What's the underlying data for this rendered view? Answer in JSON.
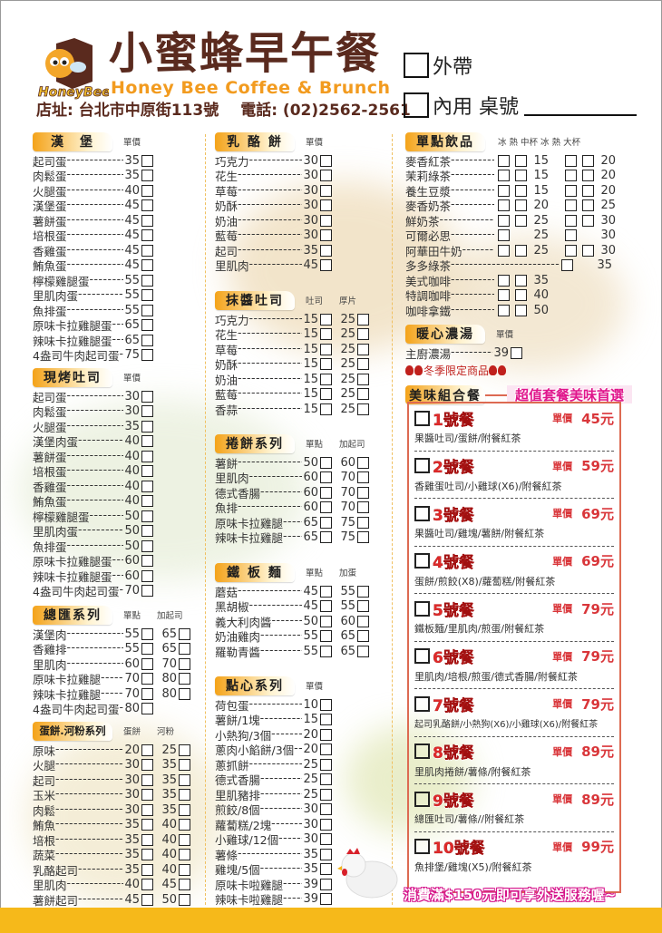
{
  "header": {
    "title": "小蜜蜂早午餐",
    "logo_text": "HoneyBee",
    "subtitle": "Honey Bee Coffee & Brunch",
    "address": "店址: 台北市中原街113號",
    "phone": "電話: (02)2562-2561",
    "takeout": "外帶",
    "dine_in": "內用 桌號"
  },
  "colors": {
    "brown": "#5a2a1e",
    "orange": "#f29b1f",
    "red": "#e02a2a",
    "magenta": "#e0168c",
    "footer": "#f6b91a"
  },
  "sections": {
    "burger": {
      "title": "漢　堡",
      "cols": [
        "單價"
      ],
      "items": [
        {
          "name": "起司蛋",
          "prices": [
            "35"
          ]
        },
        {
          "name": "肉鬆蛋",
          "prices": [
            "35"
          ]
        },
        {
          "name": "火腿蛋",
          "prices": [
            "40"
          ]
        },
        {
          "name": "漢堡蛋",
          "prices": [
            "45"
          ]
        },
        {
          "name": "薯餅蛋",
          "prices": [
            "45"
          ]
        },
        {
          "name": "培根蛋",
          "prices": [
            "45"
          ]
        },
        {
          "name": "香雞蛋",
          "prices": [
            "45"
          ]
        },
        {
          "name": "鮪魚蛋",
          "prices": [
            "45"
          ]
        },
        {
          "name": "檸檬雞腿蛋",
          "prices": [
            "55"
          ]
        },
        {
          "name": "里肌肉蛋",
          "prices": [
            "55"
          ]
        },
        {
          "name": "魚排蛋",
          "prices": [
            "55"
          ]
        },
        {
          "name": "原味卡拉雞腿蛋",
          "prices": [
            "65"
          ]
        },
        {
          "name": "辣味卡拉雞腿蛋",
          "prices": [
            "65"
          ]
        },
        {
          "name": "4盎司牛肉起司蛋",
          "prices": [
            "75"
          ]
        }
      ]
    },
    "toast": {
      "title": "現烤吐司",
      "cols": [
        "單價"
      ],
      "items": [
        {
          "name": "起司蛋",
          "prices": [
            "30"
          ]
        },
        {
          "name": "肉鬆蛋",
          "prices": [
            "30"
          ]
        },
        {
          "name": "火腿蛋",
          "prices": [
            "35"
          ]
        },
        {
          "name": "漢堡肉蛋",
          "prices": [
            "40"
          ]
        },
        {
          "name": "薯餅蛋",
          "prices": [
            "40"
          ]
        },
        {
          "name": "培根蛋",
          "prices": [
            "40"
          ]
        },
        {
          "name": "香雞蛋",
          "prices": [
            "40"
          ]
        },
        {
          "name": "鮪魚蛋",
          "prices": [
            "40"
          ]
        },
        {
          "name": "檸檬雞腿蛋",
          "prices": [
            "50"
          ]
        },
        {
          "name": "里肌肉蛋",
          "prices": [
            "50"
          ]
        },
        {
          "name": "魚排蛋",
          "prices": [
            "50"
          ]
        },
        {
          "name": "原味卡拉雞腿蛋",
          "prices": [
            "60"
          ]
        },
        {
          "name": "辣味卡拉雞腿蛋",
          "prices": [
            "60"
          ]
        },
        {
          "name": "4盎司牛肉起司蛋",
          "prices": [
            "70"
          ]
        }
      ]
    },
    "club": {
      "title": "總匯系列",
      "cols": [
        "單點",
        "加起司"
      ],
      "items": [
        {
          "name": "漢堡肉",
          "prices": [
            "55",
            "65"
          ]
        },
        {
          "name": "香雞排",
          "prices": [
            "55",
            "65"
          ]
        },
        {
          "name": "里肌肉",
          "prices": [
            "60",
            "70"
          ]
        },
        {
          "name": "原味卡拉雞腿",
          "prices": [
            "70",
            "80"
          ]
        },
        {
          "name": "辣味卡拉雞腿",
          "prices": [
            "70",
            "80"
          ]
        },
        {
          "name": "4盎司牛肉起司蛋",
          "prices": [
            "80"
          ]
        }
      ]
    },
    "eggroll": {
      "title": "蛋餅.河粉系列",
      "cols": [
        "蛋餅",
        "河粉"
      ],
      "items": [
        {
          "name": "原味",
          "prices": [
            "20",
            "25"
          ]
        },
        {
          "name": "火腿",
          "prices": [
            "30",
            "35"
          ]
        },
        {
          "name": "起司",
          "prices": [
            "30",
            "35"
          ]
        },
        {
          "name": "玉米",
          "prices": [
            "30",
            "35"
          ]
        },
        {
          "name": "肉鬆",
          "prices": [
            "30",
            "35"
          ]
        },
        {
          "name": "鮪魚",
          "prices": [
            "35",
            "40"
          ]
        },
        {
          "name": "培根",
          "prices": [
            "35",
            "40"
          ]
        },
        {
          "name": "蔬菜",
          "prices": [
            "35",
            "40"
          ]
        },
        {
          "name": "乳酪起司",
          "prices": [
            "35",
            "40"
          ]
        },
        {
          "name": "里肌肉",
          "prices": [
            "40",
            "45"
          ]
        },
        {
          "name": "薯餅起司",
          "prices": [
            "45",
            "50"
          ]
        }
      ]
    },
    "cheesecake": {
      "title": "乳 酪 餅",
      "cols": [
        "單價"
      ],
      "items": [
        {
          "name": "巧克力",
          "prices": [
            "30"
          ]
        },
        {
          "name": "花生",
          "prices": [
            "30"
          ]
        },
        {
          "name": "草莓",
          "prices": [
            "30"
          ]
        },
        {
          "name": "奶酥",
          "prices": [
            "30"
          ]
        },
        {
          "name": "奶油",
          "prices": [
            "30"
          ]
        },
        {
          "name": "藍莓",
          "prices": [
            "30"
          ]
        },
        {
          "name": "起司",
          "prices": [
            "35"
          ]
        },
        {
          "name": "里肌肉",
          "prices": [
            "45"
          ]
        }
      ]
    },
    "spread": {
      "title": "抹醬吐司",
      "cols": [
        "吐司",
        "厚片"
      ],
      "items": [
        {
          "name": "巧克力",
          "prices": [
            "15",
            "25"
          ]
        },
        {
          "name": "花生",
          "prices": [
            "15",
            "25"
          ]
        },
        {
          "name": "草莓",
          "prices": [
            "15",
            "25"
          ]
        },
        {
          "name": "奶酥",
          "prices": [
            "15",
            "25"
          ]
        },
        {
          "name": "奶油",
          "prices": [
            "15",
            "25"
          ]
        },
        {
          "name": "藍莓",
          "prices": [
            "15",
            "25"
          ]
        },
        {
          "name": "香蒜",
          "prices": [
            "15",
            "25"
          ]
        }
      ]
    },
    "wrap": {
      "title": "捲餅系列",
      "cols": [
        "單點",
        "加起司"
      ],
      "items": [
        {
          "name": "薯餅",
          "prices": [
            "50",
            "60"
          ]
        },
        {
          "name": "里肌肉",
          "prices": [
            "60",
            "70"
          ]
        },
        {
          "name": "德式香腸",
          "prices": [
            "60",
            "70"
          ]
        },
        {
          "name": "魚排",
          "prices": [
            "60",
            "70"
          ]
        },
        {
          "name": "原味卡拉雞腿",
          "prices": [
            "65",
            "75"
          ]
        },
        {
          "name": "辣味卡拉雞腿",
          "prices": [
            "65",
            "75"
          ]
        }
      ]
    },
    "noodle": {
      "title": "鐵 板 麵",
      "cols": [
        "單點",
        "加蛋"
      ],
      "items": [
        {
          "name": "蘑菇",
          "prices": [
            "45",
            "55"
          ]
        },
        {
          "name": "黑胡椒",
          "prices": [
            "45",
            "55"
          ]
        },
        {
          "name": "義大利肉醬",
          "prices": [
            "50",
            "60"
          ]
        },
        {
          "name": "奶油雞肉",
          "prices": [
            "55",
            "65"
          ]
        },
        {
          "name": "羅勒青醬",
          "prices": [
            "55",
            "65"
          ]
        }
      ]
    },
    "snack": {
      "title": "點心系列",
      "cols": [
        "單價"
      ],
      "items": [
        {
          "name": "荷包蛋",
          "prices": [
            "10"
          ]
        },
        {
          "name": "薯餅/1塊",
          "prices": [
            "15"
          ]
        },
        {
          "name": "小熱狗/3個",
          "prices": [
            "20"
          ]
        },
        {
          "name": "蔥肉小餡餅/3個",
          "prices": [
            "20"
          ]
        },
        {
          "name": "蔥抓餅",
          "prices": [
            "25"
          ]
        },
        {
          "name": "德式香腸",
          "prices": [
            "25"
          ]
        },
        {
          "name": "里肌豬排",
          "prices": [
            "25"
          ]
        },
        {
          "name": "煎餃/8個",
          "prices": [
            "30"
          ]
        },
        {
          "name": "蘿蔔糕/2塊",
          "prices": [
            "30"
          ]
        },
        {
          "name": "小雞球/12個",
          "prices": [
            "30"
          ]
        },
        {
          "name": "薯條",
          "prices": [
            "35"
          ]
        },
        {
          "name": "雞塊/5個",
          "prices": [
            "35"
          ]
        },
        {
          "name": "原味卡啦雞腿",
          "prices": [
            "39"
          ]
        },
        {
          "name": "辣味卡啦雞腿",
          "prices": [
            "39"
          ]
        }
      ]
    },
    "soup": {
      "title": "暖心濃湯",
      "cols": [
        "單價"
      ],
      "items": [
        {
          "name": "主廚濃湯",
          "prices": [
            "39"
          ]
        }
      ],
      "note": "冬季限定商品"
    }
  },
  "drinks": {
    "title": "單點飲品",
    "cols": [
      "冰",
      "熱",
      "中杯",
      "冰",
      "熱",
      "大杯"
    ],
    "items": [
      {
        "name": "麥香紅茶",
        "m": {
          "ice": true,
          "hot": true,
          "price": "15"
        },
        "l": {
          "ice": true,
          "hot": true,
          "price": "20"
        }
      },
      {
        "name": "茉莉綠茶",
        "m": {
          "ice": true,
          "hot": true,
          "price": "15"
        },
        "l": {
          "ice": true,
          "hot": true,
          "price": "20"
        }
      },
      {
        "name": "養生豆漿",
        "m": {
          "ice": true,
          "hot": true,
          "price": "15"
        },
        "l": {
          "ice": true,
          "hot": true,
          "price": "20"
        }
      },
      {
        "name": "麥香奶茶",
        "m": {
          "ice": true,
          "hot": true,
          "price": "20"
        },
        "l": {
          "ice": true,
          "hot": true,
          "price": "25"
        }
      },
      {
        "name": "鮮奶茶",
        "m": {
          "ice": true,
          "hot": true,
          "price": "25"
        },
        "l": {
          "ice": true,
          "hot": true,
          "price": "30"
        }
      },
      {
        "name": "可爾必思",
        "m": {
          "ice": true,
          "hot": false,
          "price": "25"
        },
        "l": {
          "ice": true,
          "hot": false,
          "price": "30"
        }
      },
      {
        "name": "阿華田牛奶",
        "m": {
          "ice": true,
          "hot": true,
          "price": "25"
        },
        "l": {
          "ice": true,
          "hot": true,
          "price": "30"
        }
      },
      {
        "name": "多多綠茶",
        "m": null,
        "l": {
          "ice": true,
          "hot": false,
          "price": "35"
        }
      },
      {
        "name": "美式咖啡",
        "m": {
          "ice": true,
          "hot": true,
          "price": "35"
        },
        "l": null
      },
      {
        "name": "特調咖啡",
        "m": {
          "ice": true,
          "hot": true,
          "price": "40"
        },
        "l": null
      },
      {
        "name": "咖啡拿鐵",
        "m": {
          "ice": true,
          "hot": true,
          "price": "50"
        },
        "l": null
      }
    ]
  },
  "combos": {
    "title": "美味組合餐",
    "banner": "超值套餐美味首選",
    "price_label": "單價",
    "items": [
      {
        "name": "1號餐",
        "price": "45元",
        "desc": "果醬吐司/蛋餅/附餐紅茶"
      },
      {
        "name": "2號餐",
        "price": "59元",
        "desc": "香雞蛋吐司/小雞球(X6)/附餐紅茶"
      },
      {
        "name": "3號餐",
        "price": "69元",
        "desc": "果醬吐司/雞塊/薯餅/附餐紅茶"
      },
      {
        "name": "4號餐",
        "price": "69元",
        "desc": "蛋餅/煎餃(X8)/蘿蔔糕/附餐紅茶"
      },
      {
        "name": "5號餐",
        "price": "79元",
        "desc": "鐵板麵/里肌肉/煎蛋/附餐紅茶"
      },
      {
        "name": "6號餐",
        "price": "79元",
        "desc": "里肌肉/培根/煎蛋/德式香腸/附餐紅茶"
      },
      {
        "name": "7號餐",
        "price": "79元",
        "desc": "起司乳酪餅/小熱狗(X6)/小雞球(X6)/附餐紅茶"
      },
      {
        "name": "8號餐",
        "price": "89元",
        "desc": "里肌肉捲餅/薯條/附餐紅茶"
      },
      {
        "name": "9號餐",
        "price": "89元",
        "desc": "總匯吐司/薯條//附餐紅茶"
      },
      {
        "name": "10號餐",
        "price": "99元",
        "desc": "魚排堡/雞塊(X5)/附餐紅茶"
      }
    ]
  },
  "promo": "消費滿$150元即可享外送服務喔~"
}
